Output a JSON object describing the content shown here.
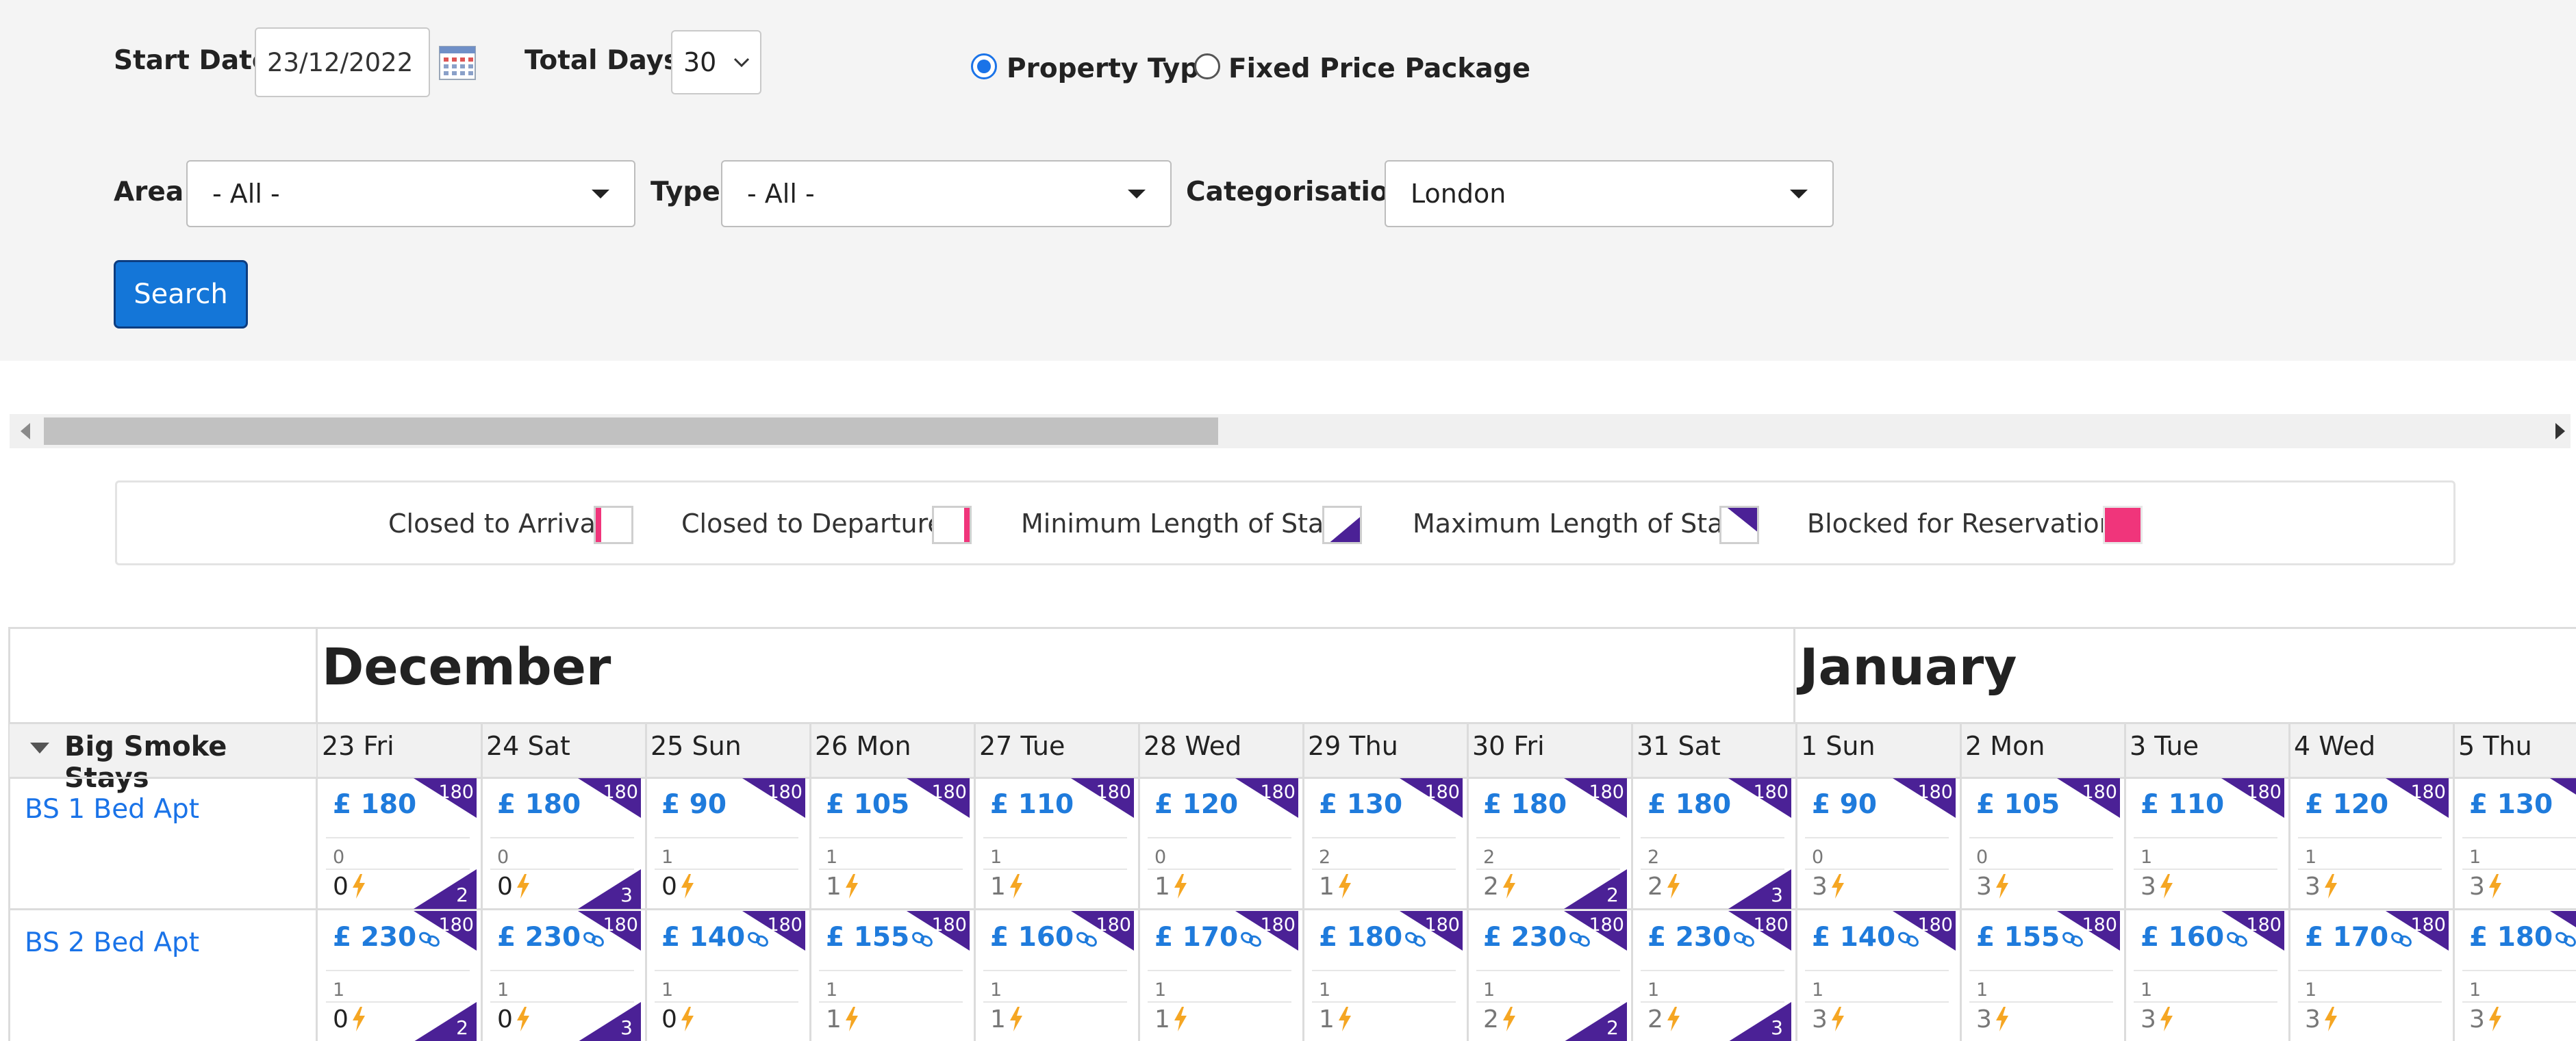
{
  "filters": {
    "start_date_label": "Start Date:",
    "start_date_value": "23/12/2022",
    "total_days_label": "Total Days:",
    "total_days_value": "30",
    "radio_property_type": "Property Type",
    "radio_fixed_price": "Fixed Price Package",
    "area_label": "Area:",
    "area_value": "- All -",
    "type_label": "Type:",
    "type_value": "- All -",
    "categorisation_label": "Categorisation:",
    "categorisation_value": "London",
    "search_label": "Search"
  },
  "legend": {
    "closed_arrival": "Closed to Arrival:",
    "closed_departure": "Closed to Departure:",
    "min_stay": "Minimum Length of Stay:",
    "max_stay": "Maximum Length of Stay:",
    "blocked": "Blocked for Reservation:",
    "colors": {
      "red_pink": "#f0357b",
      "purple": "#4b2196"
    }
  },
  "calendar": {
    "months": [
      "December",
      "January"
    ],
    "group": "Big Smoke Stays",
    "days": [
      {
        "n": "23",
        "w": "Fri"
      },
      {
        "n": "24",
        "w": "Sat"
      },
      {
        "n": "25",
        "w": "Sun"
      },
      {
        "n": "26",
        "w": "Mon"
      },
      {
        "n": "27",
        "w": "Tue"
      },
      {
        "n": "28",
        "w": "Wed"
      },
      {
        "n": "29",
        "w": "Thu"
      },
      {
        "n": "30",
        "w": "Fri"
      },
      {
        "n": "31",
        "w": "Sat"
      },
      {
        "n": "1",
        "w": "Sun"
      },
      {
        "n": "2",
        "w": "Mon"
      },
      {
        "n": "3",
        "w": "Tue"
      },
      {
        "n": "4",
        "w": "Wed"
      },
      {
        "n": "5",
        "w": "Thu"
      }
    ],
    "properties": [
      {
        "name": "BS 1 Bed Apt",
        "cells": [
          {
            "price": "£ 180",
            "max": "180",
            "avail": "0",
            "count": "0",
            "min": "2",
            "linked": false
          },
          {
            "price": "£ 180",
            "max": "180",
            "avail": "0",
            "count": "0",
            "min": "3",
            "linked": false
          },
          {
            "price": "£ 90",
            "max": "180",
            "avail": "1",
            "count": "0",
            "min": "",
            "linked": false
          },
          {
            "price": "£ 105",
            "max": "180",
            "avail": "1",
            "count": "1",
            "min": "",
            "linked": false
          },
          {
            "price": "£ 110",
            "max": "180",
            "avail": "1",
            "count": "1",
            "min": "",
            "linked": false
          },
          {
            "price": "£ 120",
            "max": "180",
            "avail": "0",
            "count": "1",
            "min": "",
            "linked": false
          },
          {
            "price": "£ 130",
            "max": "180",
            "avail": "2",
            "count": "1",
            "min": "",
            "linked": false
          },
          {
            "price": "£ 180",
            "max": "180",
            "avail": "2",
            "count": "2",
            "min": "2",
            "linked": false
          },
          {
            "price": "£ 180",
            "max": "180",
            "avail": "2",
            "count": "2",
            "min": "3",
            "linked": false
          },
          {
            "price": "£ 90",
            "max": "180",
            "avail": "0",
            "count": "3",
            "min": "",
            "linked": false
          },
          {
            "price": "£ 105",
            "max": "180",
            "avail": "0",
            "count": "3",
            "min": "",
            "linked": false
          },
          {
            "price": "£ 110",
            "max": "180",
            "avail": "1",
            "count": "3",
            "min": "",
            "linked": false
          },
          {
            "price": "£ 120",
            "max": "180",
            "avail": "1",
            "count": "3",
            "min": "",
            "linked": false
          },
          {
            "price": "£ 130",
            "max": "180",
            "avail": "1",
            "count": "3",
            "min": "",
            "linked": false
          }
        ]
      },
      {
        "name": "BS 2 Bed Apt",
        "cells": [
          {
            "price": "£ 230",
            "max": "180",
            "avail": "1",
            "count": "0",
            "min": "2",
            "linked": true
          },
          {
            "price": "£ 230",
            "max": "180",
            "avail": "1",
            "count": "0",
            "min": "3",
            "linked": true
          },
          {
            "price": "£ 140",
            "max": "180",
            "avail": "1",
            "count": "0",
            "min": "",
            "linked": true
          },
          {
            "price": "£ 155",
            "max": "180",
            "avail": "1",
            "count": "1",
            "min": "",
            "linked": true
          },
          {
            "price": "£ 160",
            "max": "180",
            "avail": "1",
            "count": "1",
            "min": "",
            "linked": true
          },
          {
            "price": "£ 170",
            "max": "180",
            "avail": "1",
            "count": "1",
            "min": "",
            "linked": true
          },
          {
            "price": "£ 180",
            "max": "180",
            "avail": "1",
            "count": "1",
            "min": "",
            "linked": true
          },
          {
            "price": "£ 230",
            "max": "180",
            "avail": "1",
            "count": "2",
            "min": "2",
            "linked": true
          },
          {
            "price": "£ 230",
            "max": "180",
            "avail": "1",
            "count": "2",
            "min": "3",
            "linked": true
          },
          {
            "price": "£ 140",
            "max": "180",
            "avail": "1",
            "count": "3",
            "min": "",
            "linked": true
          },
          {
            "price": "£ 155",
            "max": "180",
            "avail": "1",
            "count": "3",
            "min": "",
            "linked": true
          },
          {
            "price": "£ 160",
            "max": "180",
            "avail": "1",
            "count": "3",
            "min": "",
            "linked": true
          },
          {
            "price": "£ 170",
            "max": "180",
            "avail": "1",
            "count": "3",
            "min": "",
            "linked": true
          },
          {
            "price": "£ 180",
            "max": "180",
            "avail": "1",
            "count": "3",
            "min": "",
            "linked": true
          }
        ]
      }
    ]
  }
}
